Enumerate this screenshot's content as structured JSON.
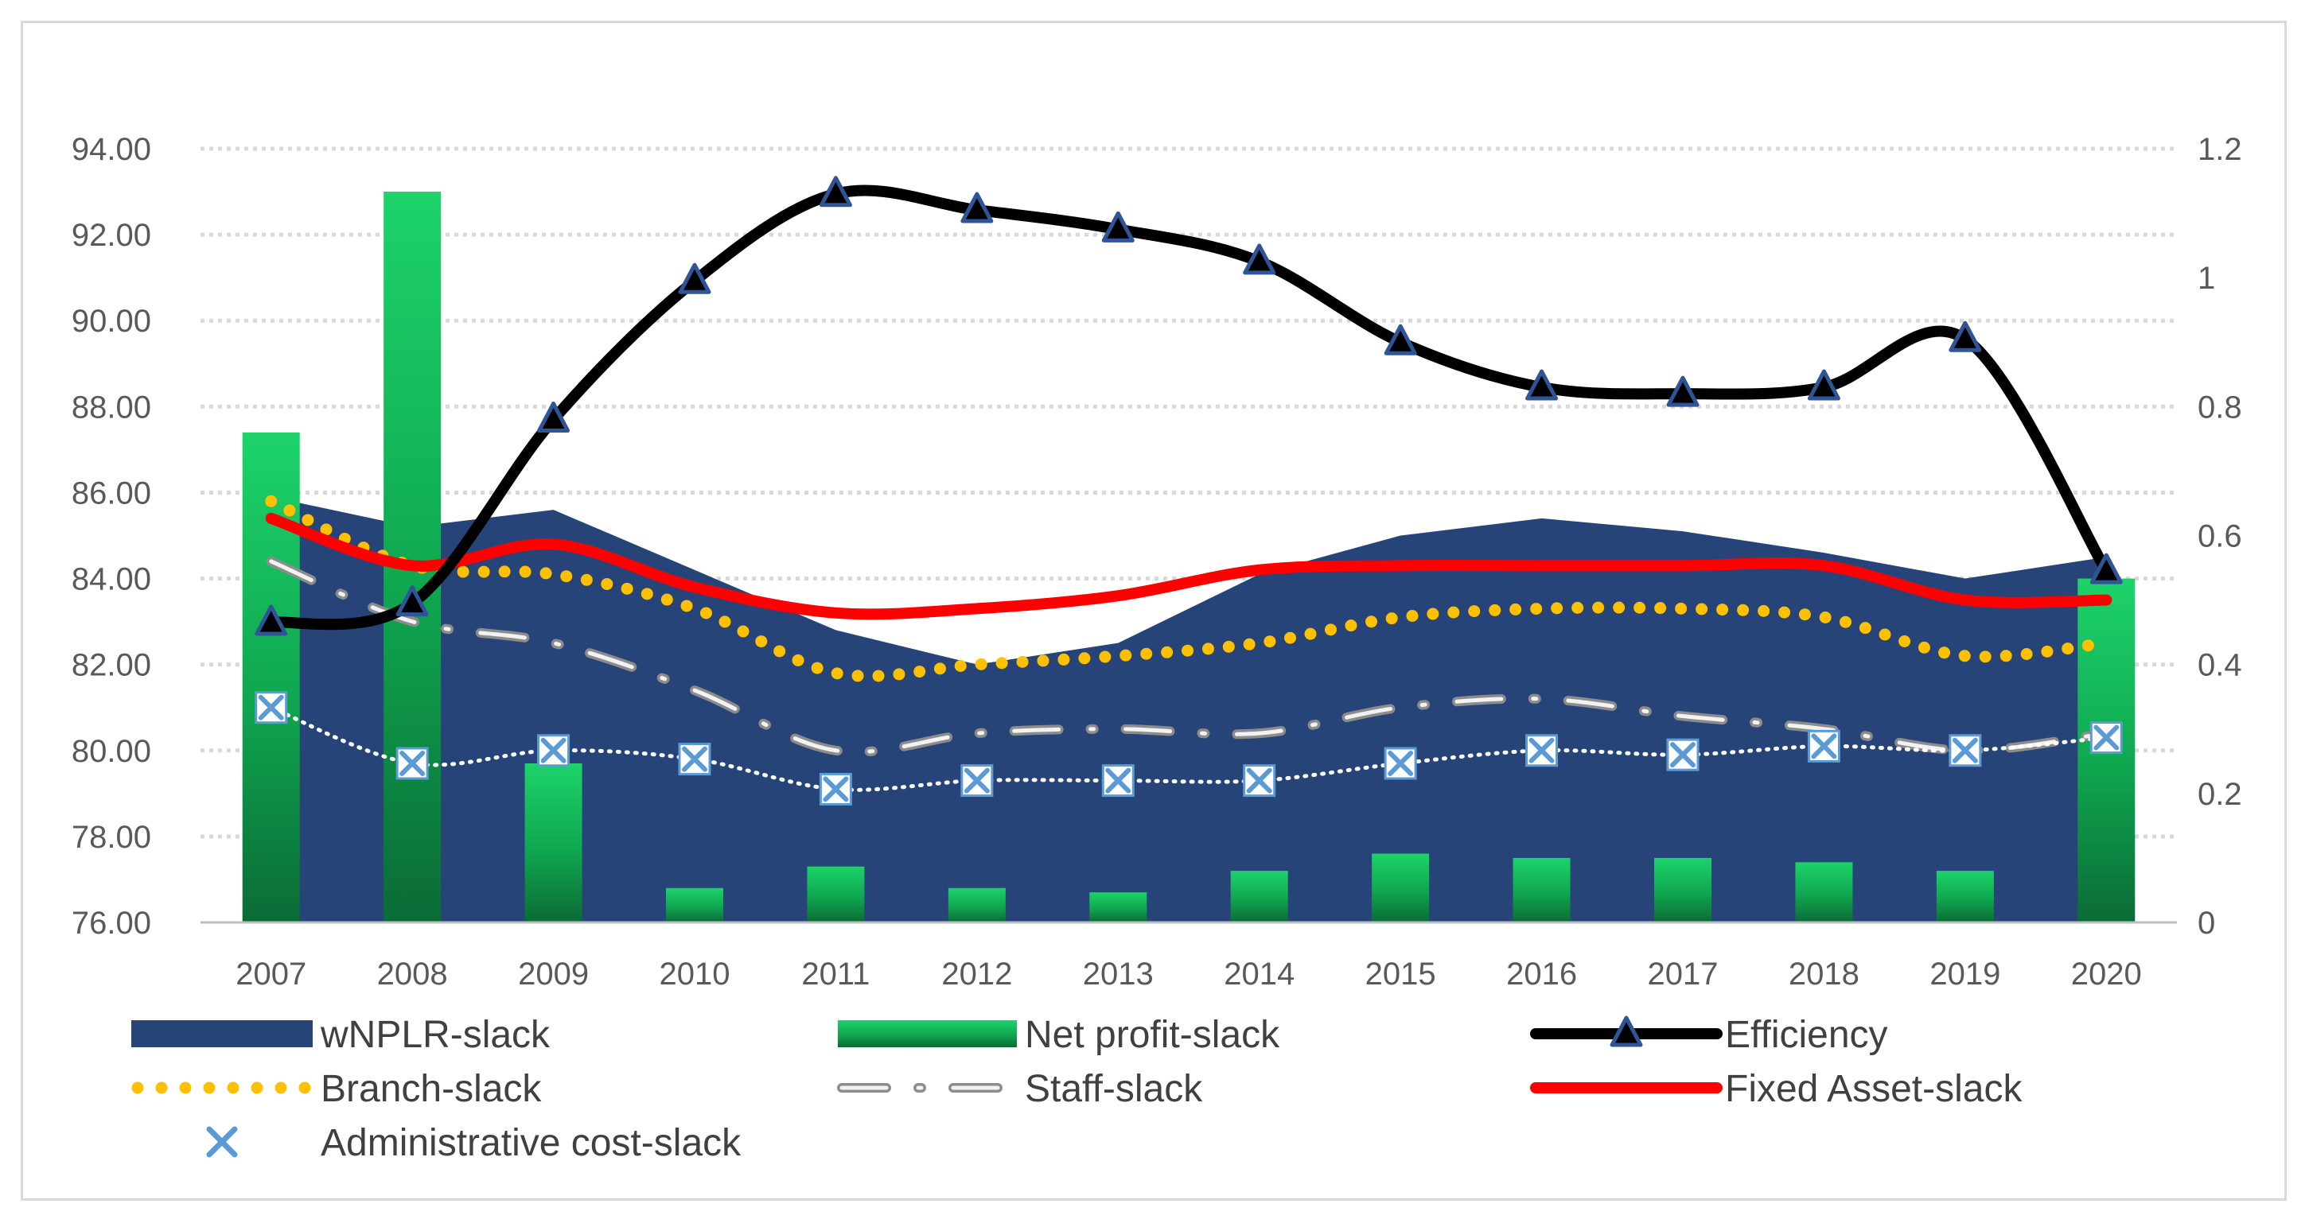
{
  "chart_data": {
    "type": "line",
    "title": "",
    "x": [
      "2007",
      "2008",
      "2009",
      "2010",
      "2011",
      "2012",
      "2013",
      "2014",
      "2015",
      "2016",
      "2017",
      "2018",
      "2019",
      "2020"
    ],
    "y_left": {
      "min": 76,
      "max": 94,
      "ticks": [
        "94.00",
        "92.00",
        "90.00",
        "88.00",
        "86.00",
        "84.00",
        "82.00",
        "80.00",
        "78.00",
        "76.00"
      ]
    },
    "y_right": {
      "min": 0,
      "max": 1.2,
      "ticks": [
        "1.2",
        "1",
        "0.8",
        "0.6",
        "0.4",
        "0.2",
        "0"
      ]
    },
    "grid": true,
    "legend_position": "bottom",
    "series": [
      {
        "name": "wNPLR-slack",
        "kind": "area",
        "axis": "left",
        "color": "#264478",
        "values": [
          85.9,
          85.2,
          85.6,
          84.2,
          82.8,
          82.0,
          82.5,
          84.1,
          85.0,
          85.4,
          85.1,
          84.6,
          84.0,
          84.5
        ]
      },
      {
        "name": "Net profit-slack",
        "kind": "bar",
        "axis": "left",
        "color": "#00b050",
        "values": [
          87.4,
          93.0,
          79.7,
          76.8,
          77.3,
          76.8,
          76.7,
          77.2,
          77.6,
          77.5,
          77.5,
          77.4,
          77.2,
          84.0
        ]
      },
      {
        "name": "Efficiency",
        "kind": "line",
        "axis": "right",
        "color": "#000000",
        "marker": "triangle",
        "values": [
          0.465,
          0.495,
          0.78,
          0.995,
          1.13,
          1.105,
          1.075,
          1.025,
          0.9,
          0.83,
          0.82,
          0.83,
          0.905,
          0.545
        ]
      },
      {
        "name": "Branch-slack",
        "kind": "line",
        "axis": "left",
        "color": "#ffc000",
        "style": "dotted",
        "values": [
          85.8,
          84.3,
          84.1,
          83.3,
          81.8,
          82.0,
          82.2,
          82.5,
          83.1,
          83.3,
          83.3,
          83.1,
          82.2,
          82.5
        ]
      },
      {
        "name": "Staff-slack",
        "kind": "line",
        "axis": "left",
        "color": "#a6a6a6",
        "style": "long-dash-dot",
        "values": [
          84.4,
          83.0,
          82.5,
          81.4,
          80.0,
          80.4,
          80.5,
          80.4,
          81.0,
          81.2,
          80.8,
          80.5,
          80.0,
          80.4
        ]
      },
      {
        "name": "Fixed Asset-slack",
        "kind": "line",
        "axis": "left",
        "color": "#ff0000",
        "values": [
          85.4,
          84.3,
          84.8,
          83.8,
          83.2,
          83.3,
          83.6,
          84.2,
          84.3,
          84.3,
          84.3,
          84.3,
          83.5,
          83.5
        ]
      },
      {
        "name": "Administrative cost-slack",
        "kind": "line",
        "axis": "left",
        "color": "#ffffff",
        "marker": "x-box",
        "values": [
          81.0,
          79.7,
          80.0,
          79.8,
          79.1,
          79.3,
          79.3,
          79.3,
          79.7,
          80.0,
          79.9,
          80.1,
          80.0,
          80.3
        ]
      }
    ]
  }
}
